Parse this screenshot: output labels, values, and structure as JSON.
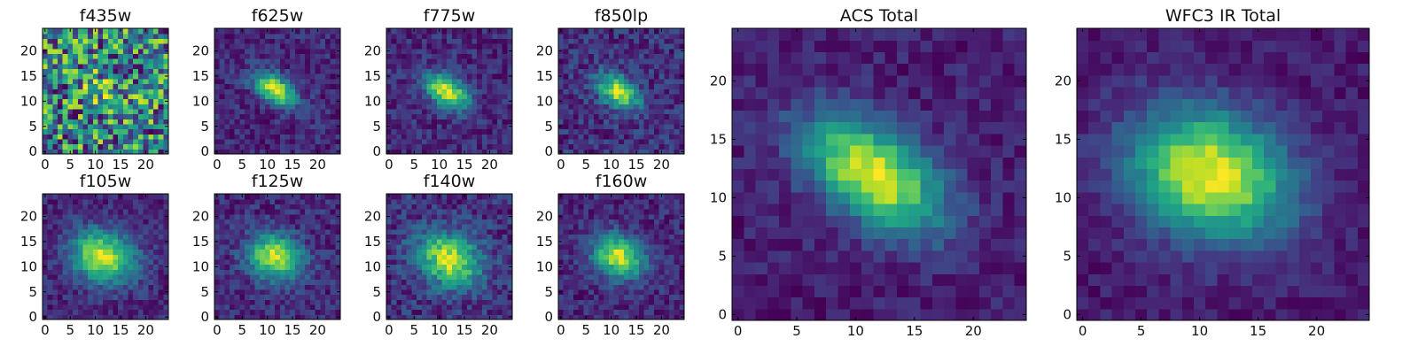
{
  "chart_data": {
    "type": "heatmap",
    "colormap": "viridis",
    "grid": false,
    "panels": [
      {
        "title": "f435w",
        "source": {
          "type": "blob",
          "seed": 11,
          "cx": 12,
          "cy": 12,
          "sx": 4,
          "sy": 2.5,
          "angle": -35,
          "amp": 0.1,
          "noise": 0.55,
          "floor": 0.45
        },
        "xlim": [
          0,
          24
        ],
        "ylim": [
          0,
          24
        ],
        "xticks": [
          0,
          5,
          10,
          15,
          20
        ],
        "yticks": [
          0,
          5,
          10,
          15,
          20
        ]
      },
      {
        "title": "f625w",
        "source": {
          "type": "blob",
          "seed": 21,
          "cx": 11.5,
          "cy": 12.5,
          "sx": 3.2,
          "sy": 1.8,
          "angle": -35,
          "amp": 0.85,
          "noise": 0.25,
          "floor": 0.05
        },
        "xlim": [
          0,
          24
        ],
        "ylim": [
          0,
          24
        ],
        "xticks": [
          0,
          5,
          10,
          15,
          20
        ],
        "yticks": [
          0,
          5,
          10,
          15,
          20
        ]
      },
      {
        "title": "f775w",
        "source": {
          "type": "blob",
          "seed": 31,
          "cx": 11.5,
          "cy": 12,
          "sx": 3.3,
          "sy": 2,
          "angle": -30,
          "amp": 0.85,
          "noise": 0.25,
          "floor": 0.05
        },
        "xlim": [
          0,
          24
        ],
        "ylim": [
          0,
          24
        ],
        "xticks": [
          0,
          5,
          10,
          15,
          20
        ],
        "yticks": [
          0,
          5,
          10,
          15,
          20
        ]
      },
      {
        "title": "f850lp",
        "source": {
          "type": "blob",
          "seed": 41,
          "cx": 11.5,
          "cy": 12,
          "sx": 3.2,
          "sy": 2,
          "angle": -35,
          "amp": 0.8,
          "noise": 0.3,
          "floor": 0.1
        },
        "xlim": [
          0,
          24
        ],
        "ylim": [
          0,
          24
        ],
        "xticks": [
          0,
          5,
          10,
          15,
          20
        ],
        "yticks": [
          0,
          5,
          10,
          15,
          20
        ]
      },
      {
        "title": "f105w",
        "source": {
          "type": "blob",
          "seed": 51,
          "cx": 11.5,
          "cy": 12,
          "sx": 4.5,
          "sy": 3.5,
          "angle": -20,
          "amp": 0.8,
          "noise": 0.22,
          "floor": 0.3
        },
        "xlim": [
          0,
          24
        ],
        "ylim": [
          0,
          24
        ],
        "xticks": [
          0,
          5,
          10,
          15,
          20
        ],
        "yticks": [
          0,
          5,
          10,
          15,
          20
        ]
      },
      {
        "title": "f125w",
        "source": {
          "type": "blob",
          "seed": 61,
          "cx": 11.5,
          "cy": 12,
          "sx": 3.8,
          "sy": 3,
          "angle": -20,
          "amp": 0.8,
          "noise": 0.25,
          "floor": 0.15
        },
        "xlim": [
          0,
          24
        ],
        "ylim": [
          0,
          24
        ],
        "xticks": [
          0,
          5,
          10,
          15,
          20
        ],
        "yticks": [
          0,
          5,
          10,
          15,
          20
        ]
      },
      {
        "title": "f140w",
        "source": {
          "type": "blob",
          "seed": 71,
          "cx": 12,
          "cy": 11.5,
          "sx": 4.5,
          "sy": 3.5,
          "angle": -25,
          "amp": 0.75,
          "noise": 0.28,
          "floor": 0.25
        },
        "xlim": [
          0,
          24
        ],
        "ylim": [
          0,
          24
        ],
        "xticks": [
          0,
          5,
          10,
          15,
          20
        ],
        "yticks": [
          0,
          5,
          10,
          15,
          20
        ]
      },
      {
        "title": "f160w",
        "source": {
          "type": "blob",
          "seed": 81,
          "cx": 11.5,
          "cy": 12,
          "sx": 3.6,
          "sy": 2.8,
          "angle": -25,
          "amp": 0.85,
          "noise": 0.25,
          "floor": 0.1
        },
        "xlim": [
          0,
          24
        ],
        "ylim": [
          0,
          24
        ],
        "xticks": [
          0,
          5,
          10,
          15,
          20
        ],
        "yticks": [
          0,
          5,
          10,
          15,
          20
        ]
      },
      {
        "title": "ACS Total",
        "source": {
          "type": "blob",
          "seed": 91,
          "cx": 11.5,
          "cy": 12,
          "sx": 4.6,
          "sy": 2.6,
          "angle": -35,
          "amp": 0.9,
          "noise": 0.18,
          "floor": 0.15
        },
        "xlim": [
          0,
          24
        ],
        "ylim": [
          0,
          24
        ],
        "xticks": [
          0,
          5,
          10,
          15,
          20
        ],
        "yticks": [
          0,
          5,
          10,
          15,
          20
        ]
      },
      {
        "title": "WFC3 IR Total",
        "source": {
          "type": "blob",
          "seed": 101,
          "cx": 11,
          "cy": 12,
          "sx": 4.8,
          "sy": 3.6,
          "angle": -20,
          "amp": 0.9,
          "noise": 0.15,
          "floor": 0.15
        },
        "xlim": [
          0,
          24
        ],
        "ylim": [
          0,
          24
        ],
        "xticks": [
          0,
          5,
          10,
          15,
          20
        ],
        "yticks": [
          0,
          5,
          10,
          15,
          20
        ]
      }
    ]
  }
}
